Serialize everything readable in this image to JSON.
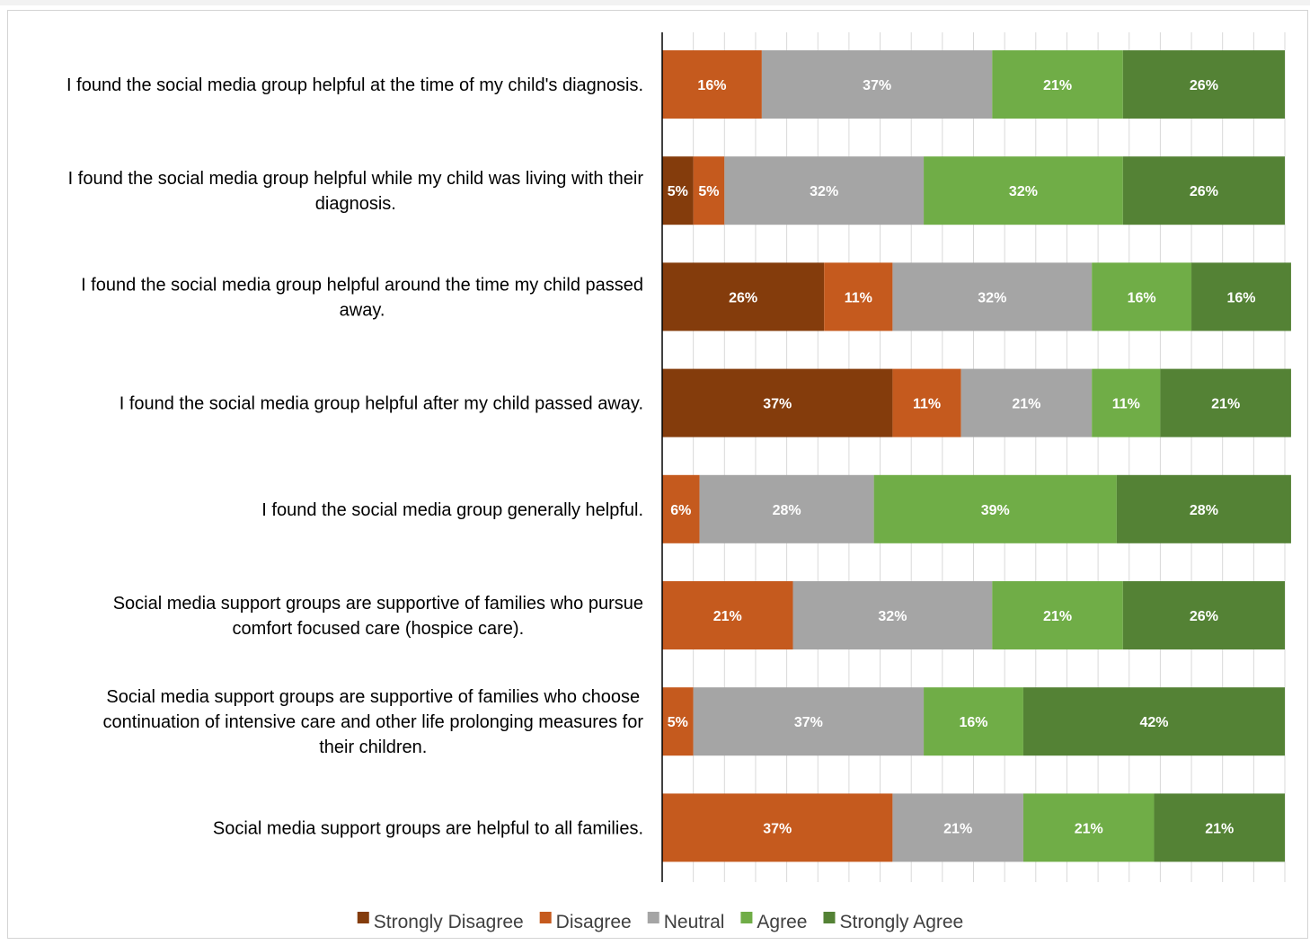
{
  "chart_data": {
    "type": "bar",
    "orientation": "horizontal",
    "stacked": true,
    "categories": [
      [
        "I found the social media group helpful at the time of my child's diagnosis."
      ],
      [
        "I found the social media group helpful while my child was living with their",
        "diagnosis."
      ],
      [
        "I found the social media group helpful around the time my child passed",
        "away."
      ],
      [
        "I found the social media group helpful after my child passed away."
      ],
      [
        "I found the social media group generally helpful."
      ],
      [
        "Social media support groups are supportive of families who pursue",
        "comfort focused care (hospice care)."
      ],
      [
        "Social media support groups are supportive of families who choose",
        "continuation of intensive care and other life prolonging measures for",
        "their children."
      ],
      [
        "Social media support groups are helpful to all families."
      ]
    ],
    "series": [
      {
        "name": "Strongly Disagree",
        "color": "#843c0c",
        "values": [
          0,
          5,
          26,
          37,
          0,
          0,
          0,
          0
        ],
        "labels": [
          "",
          "5%",
          "26%",
          "37%",
          "",
          "",
          "",
          ""
        ]
      },
      {
        "name": "Disagree",
        "color": "#c55a1e",
        "values": [
          16,
          5,
          11,
          11,
          6,
          21,
          5,
          37
        ],
        "labels": [
          "16%",
          "5%",
          "11%",
          "11%",
          "6%",
          "21%",
          "5%",
          "37%"
        ]
      },
      {
        "name": "Neutral",
        "color": "#a5a5a5",
        "values": [
          37,
          32,
          32,
          21,
          28,
          32,
          37,
          21
        ],
        "labels": [
          "37%",
          "32%",
          "32%",
          "21%",
          "28%",
          "32%",
          "37%",
          "21%"
        ]
      },
      {
        "name": "Agree",
        "color": "#70ad47",
        "values": [
          21,
          32,
          16,
          11,
          39,
          21,
          16,
          21
        ],
        "labels": [
          "21%",
          "32%",
          "16%",
          "11%",
          "39%",
          "21%",
          "16%",
          "21%"
        ]
      },
      {
        "name": "Strongly Agree",
        "color": "#548235",
        "values": [
          26,
          26,
          16,
          21,
          28,
          26,
          42,
          21
        ],
        "labels": [
          "26%",
          "26%",
          "16%",
          "21%",
          "28%",
          "26%",
          "42%",
          "21%"
        ]
      }
    ],
    "xlim": [
      0,
      100
    ],
    "grid": true,
    "legend_position": "bottom",
    "title": "",
    "xlabel": "",
    "ylabel": ""
  }
}
